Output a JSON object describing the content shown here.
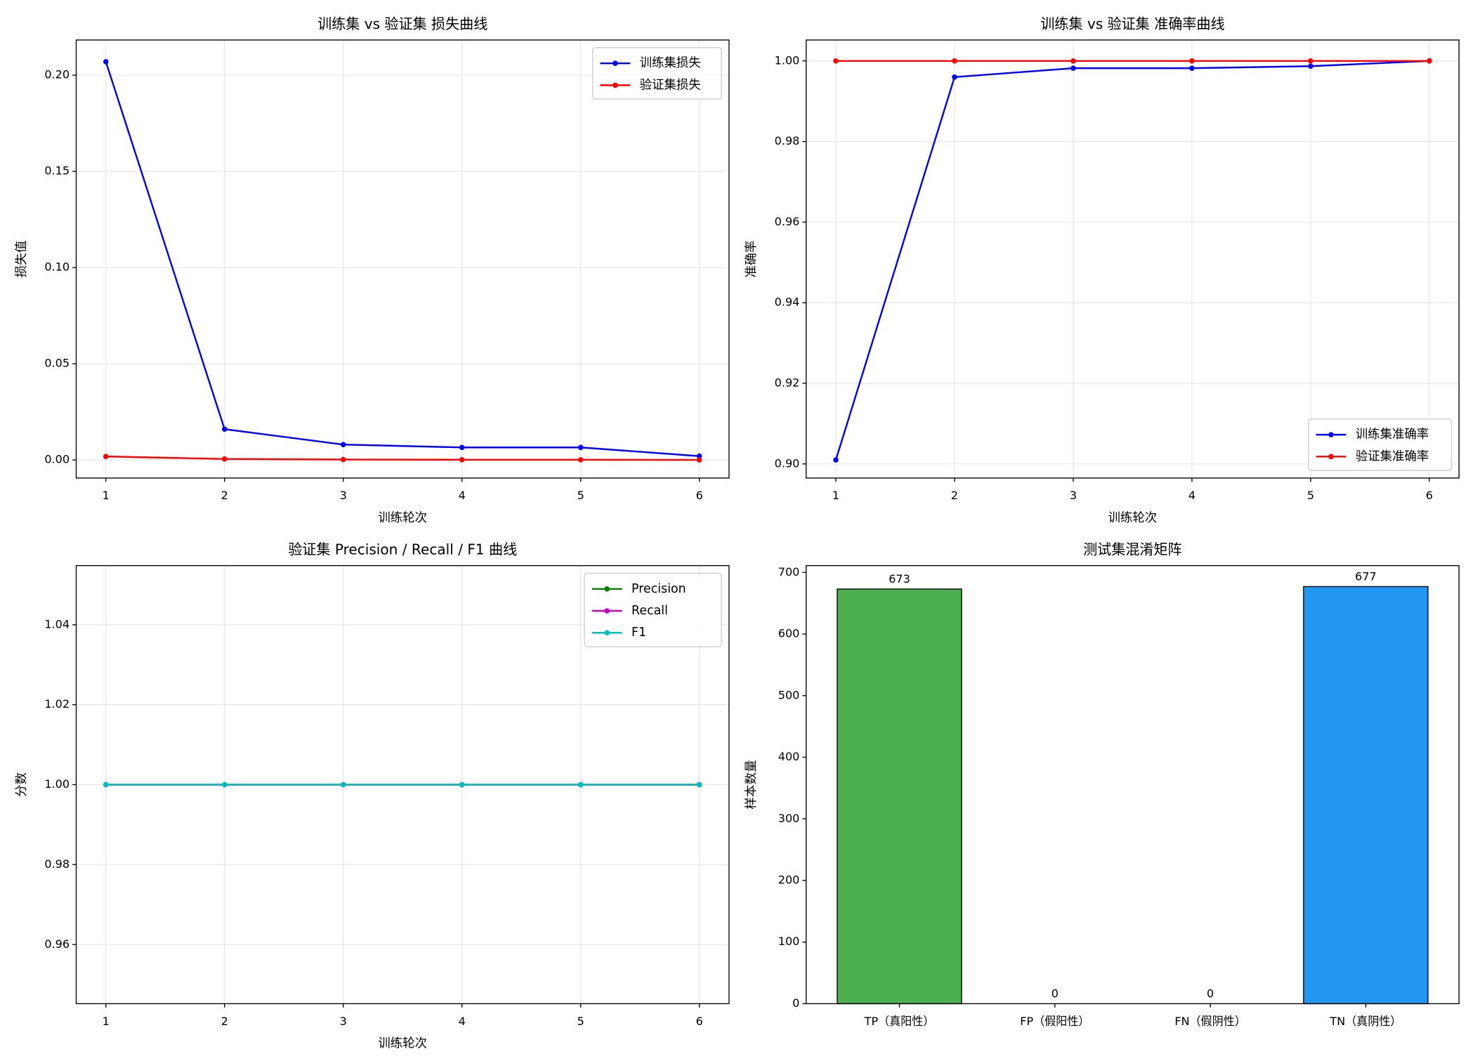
{
  "chart_data": [
    {
      "type": "line",
      "title": "训练集 vs 验证集 损失曲线",
      "xlabel": "训练轮次",
      "ylabel": "损失值",
      "x": [
        1,
        2,
        3,
        4,
        5,
        6
      ],
      "series": [
        {
          "name": "训练集损失",
          "color": "#0000ff",
          "values": [
            0.207,
            0.016,
            0.008,
            0.0065,
            0.0065,
            0.002
          ]
        },
        {
          "name": "验证集损失",
          "color": "#ff0000",
          "values": [
            0.0018,
            0.0005,
            0.0002,
            0.0001,
            0.0001,
            0.0
          ]
        }
      ],
      "xlim": [
        0.75,
        6.25
      ],
      "xticks": [
        1,
        2,
        3,
        4,
        5,
        6
      ],
      "ylim": [
        -0.0094,
        0.2183
      ],
      "yticks": [
        {
          "value": 0,
          "label": "0.00"
        },
        {
          "value": 0.05,
          "label": "0.05"
        },
        {
          "value": 0.1,
          "label": "0.10"
        },
        {
          "value": 0.15,
          "label": "0.15"
        },
        {
          "value": 0.2,
          "label": "0.20"
        }
      ],
      "grid": true,
      "legend": "upper right"
    },
    {
      "type": "line",
      "title": "训练集 vs 验证集 准确率曲线",
      "xlabel": "训练轮次",
      "ylabel": "准确率",
      "x": [
        1,
        2,
        3,
        4,
        5,
        6
      ],
      "series": [
        {
          "name": "训练集准确率",
          "color": "#0000ff",
          "values": [
            0.901,
            0.996,
            0.9982,
            0.9982,
            0.9987,
            1.0
          ]
        },
        {
          "name": "验证集准确率",
          "color": "#ff0000",
          "values": [
            1.0,
            1.0,
            1.0,
            1.0,
            1.0,
            1.0
          ]
        }
      ],
      "xlim": [
        0.75,
        6.25
      ],
      "xticks": [
        1,
        2,
        3,
        4,
        5,
        6
      ],
      "ylim": [
        0.8965,
        1.0052
      ],
      "yticks": [
        {
          "value": 0.9,
          "label": "0.90"
        },
        0.92,
        0.94,
        0.96,
        0.98,
        {
          "value": 1.0,
          "label": "1.00"
        }
      ],
      "grid": true,
      "legend": "lower right"
    },
    {
      "type": "line",
      "title": "验证集 Precision / Recall / F1 曲线",
      "xlabel": "训练轮次",
      "ylabel": "分数",
      "x": [
        1,
        2,
        3,
        4,
        5,
        6
      ],
      "series": [
        {
          "name": "Precision",
          "color": "#008000",
          "values": [
            1.0,
            1.0,
            1.0,
            1.0,
            1.0,
            1.0
          ]
        },
        {
          "name": "Recall",
          "color": "#bf00bf",
          "values": [
            1.0,
            1.0,
            1.0,
            1.0,
            1.0,
            1.0
          ]
        },
        {
          "name": "F1",
          "color": "#00bfbf",
          "values": [
            1.0,
            1.0,
            1.0,
            1.0,
            1.0,
            1.0
          ]
        }
      ],
      "xlim": [
        0.75,
        6.25
      ],
      "xticks": [
        1,
        2,
        3,
        4,
        5,
        6
      ],
      "ylim": [
        0.9452,
        1.0548
      ],
      "yticks": [
        0.96,
        0.98,
        {
          "value": 1.0,
          "label": "1.00"
        },
        1.02,
        1.04
      ],
      "grid": true,
      "legend": "upper right"
    },
    {
      "type": "bar",
      "title": "测试集混淆矩阵",
      "ylabel": "样本数量",
      "categories": [
        "TP（真阳性）",
        "FP（假阳性）",
        "FN（假阴性）",
        "TN（真阴性）"
      ],
      "values": [
        673,
        0,
        0,
        677
      ],
      "colors": [
        "#4caf50",
        "#f44336",
        "#ff9800",
        "#2196f3"
      ],
      "ylim": [
        0,
        711
      ],
      "yticks": [
        0,
        100,
        200,
        300,
        400,
        500,
        600,
        700
      ],
      "grid": false
    }
  ]
}
